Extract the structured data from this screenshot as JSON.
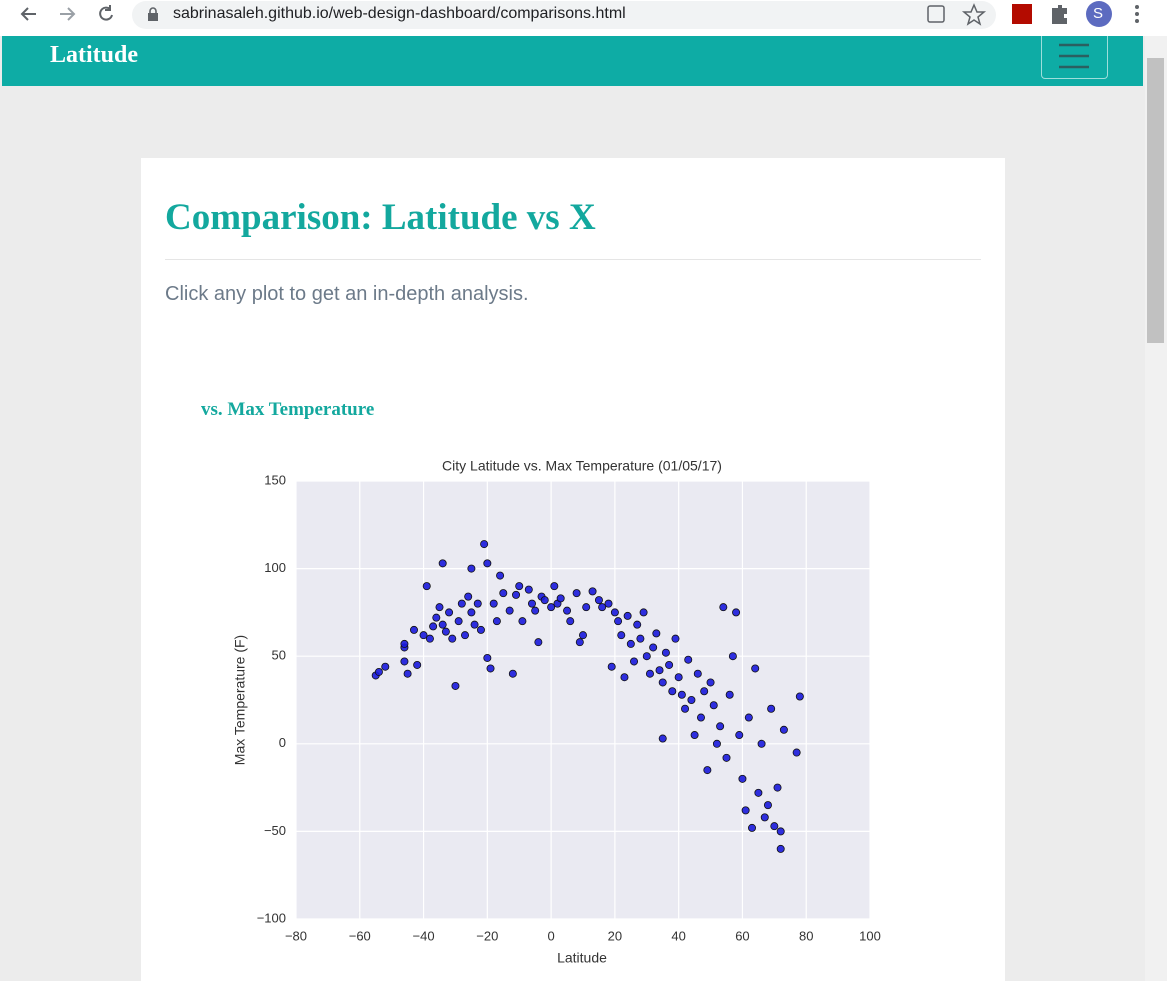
{
  "browser": {
    "url": "sabrinasaleh.github.io/web-design-dashboard/comparisons.html",
    "profile_initial": "S"
  },
  "navbar": {
    "brand": "Latitude"
  },
  "page": {
    "title": "Comparison: Latitude vs X",
    "intro": "Click any plot to get an in-depth analysis.",
    "section_title": "vs. Max Temperature"
  },
  "chart_data": {
    "type": "scatter",
    "title": "City Latitude vs. Max Temperature (01/05/17)",
    "x_label": "Latitude",
    "y_label": "Max Temperature (F)",
    "color": "#1a1adc",
    "grid": true,
    "xlim": [
      -80,
      100
    ],
    "xticks": [
      {
        "value": -80,
        "label": "−80"
      },
      {
        "value": -60,
        "label": "−60"
      },
      {
        "value": -40,
        "label": "−40"
      },
      {
        "value": -20,
        "label": "−20"
      },
      0,
      20,
      40,
      60,
      80,
      100
    ],
    "ylim": [
      -100,
      150
    ],
    "yticks": [
      {
        "value": -100,
        "label": "−100"
      },
      {
        "value": -50,
        "label": "−50"
      },
      0,
      50,
      100,
      150
    ],
    "x": [
      -55,
      -54,
      -52,
      -46,
      -46,
      -46,
      -45,
      -43,
      -42,
      -40,
      -39,
      -38,
      -37,
      -36,
      -35,
      -34,
      -34,
      -33,
      -32,
      -31,
      -30,
      -29,
      -28,
      -27,
      -26,
      -25,
      -25,
      -24,
      -23,
      -22,
      -21,
      -20,
      -20,
      -19,
      -18,
      -17,
      -16,
      -15,
      -13,
      -12,
      -11,
      -10,
      -9,
      -7,
      -6,
      -5,
      -4,
      -3,
      -2,
      0,
      1,
      2,
      3,
      5,
      6,
      8,
      9,
      10,
      11,
      13,
      15,
      16,
      18,
      19,
      20,
      21,
      22,
      23,
      24,
      25,
      26,
      27,
      28,
      29,
      30,
      31,
      32,
      33,
      34,
      35,
      35,
      36,
      37,
      38,
      39,
      40,
      41,
      42,
      43,
      44,
      45,
      46,
      47,
      48,
      49,
      50,
      51,
      52,
      53,
      54,
      55,
      56,
      57,
      58,
      59,
      60,
      61,
      62,
      63,
      64,
      65,
      66,
      67,
      68,
      69,
      70,
      71,
      72,
      72,
      73,
      77,
      78
    ],
    "values": [
      39,
      41,
      44,
      55,
      57,
      47,
      40,
      65,
      45,
      62,
      90,
      60,
      67,
      72,
      78,
      103,
      68,
      64,
      75,
      60,
      33,
      70,
      80,
      62,
      84,
      100,
      75,
      68,
      80,
      65,
      114,
      103,
      49,
      43,
      80,
      70,
      96,
      86,
      76,
      40,
      85,
      90,
      70,
      88,
      80,
      76,
      58,
      84,
      82,
      78,
      90,
      80,
      83,
      76,
      70,
      86,
      58,
      62,
      78,
      87,
      82,
      78,
      80,
      44,
      75,
      70,
      62,
      38,
      73,
      57,
      47,
      68,
      60,
      75,
      50,
      40,
      55,
      63,
      42,
      3,
      35,
      52,
      45,
      30,
      60,
      38,
      28,
      20,
      48,
      25,
      5,
      40,
      15,
      30,
      -15,
      35,
      22,
      0,
      10,
      78,
      -8,
      28,
      50,
      75,
      5,
      -20,
      -38,
      15,
      -48,
      43,
      -28,
      0,
      -42,
      -35,
      20,
      -47,
      -25,
      -60,
      -50,
      8,
      -5,
      27
    ]
  }
}
